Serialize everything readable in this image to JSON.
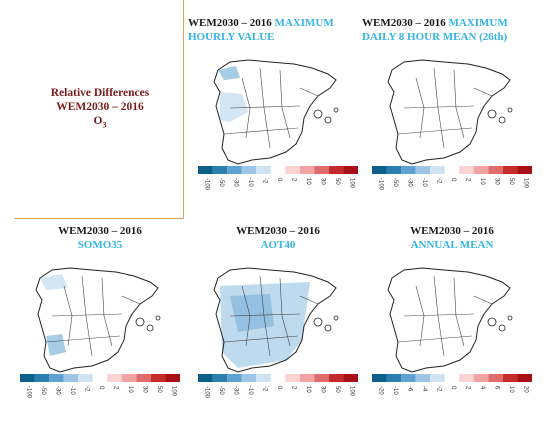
{
  "legend": {
    "line1": "Relative Differences",
    "line2": "WEM2030 – 2016",
    "line3_main": "O",
    "line3_sub": "3"
  },
  "panels": [
    {
      "id": "max-hourly",
      "title_prefix": "WEM2030 – 2016",
      "title_metric": "MAXIMUM HOURLY VALUE",
      "colorbar_ticks": [
        "-100",
        "-50",
        "-30",
        "-10",
        "-2",
        "0",
        "2",
        "10",
        "30",
        "50",
        "100"
      ]
    },
    {
      "id": "max-8h",
      "title_prefix": "WEM2030 – 2016",
      "title_metric": "MAXIMUM DAILY 8 HOUR MEAN (26th)",
      "colorbar_ticks": [
        "-100",
        "-50",
        "-30",
        "-10",
        "-2",
        "0",
        "2",
        "10",
        "30",
        "50",
        "100"
      ]
    },
    {
      "id": "somo35",
      "title_prefix": "WEM2030 – 2016",
      "title_metric": "SOMO35",
      "colorbar_ticks": [
        "-100",
        "-50",
        "-30",
        "-10",
        "-2",
        "0",
        "2",
        "10",
        "30",
        "50",
        "100"
      ]
    },
    {
      "id": "aot40",
      "title_prefix": "WEM2030 – 2016",
      "title_metric": "AOT40",
      "colorbar_ticks": [
        "-100",
        "-50",
        "-30",
        "-10",
        "-2",
        "0",
        "2",
        "10",
        "30",
        "50",
        "100"
      ]
    },
    {
      "id": "annual-mean",
      "title_prefix": "WEM2030 – 2016",
      "title_metric": "ANNUAL MEAN",
      "colorbar_ticks": [
        "-20",
        "-10",
        "-6",
        "-4",
        "-2",
        "0",
        "2",
        "4",
        "6",
        "10",
        "20"
      ]
    }
  ],
  "colors": {
    "title_blue": "#33b5e5",
    "legend_red": "#7b1c1c",
    "scale": [
      "#0d5f8a",
      "#2a7fb0",
      "#5ea3cf",
      "#9cc6e3",
      "#cfe3f2",
      "#ffffff",
      "#fbd3d3",
      "#f2a3a3",
      "#e06b6b",
      "#c62a2a",
      "#a50f15"
    ]
  }
}
